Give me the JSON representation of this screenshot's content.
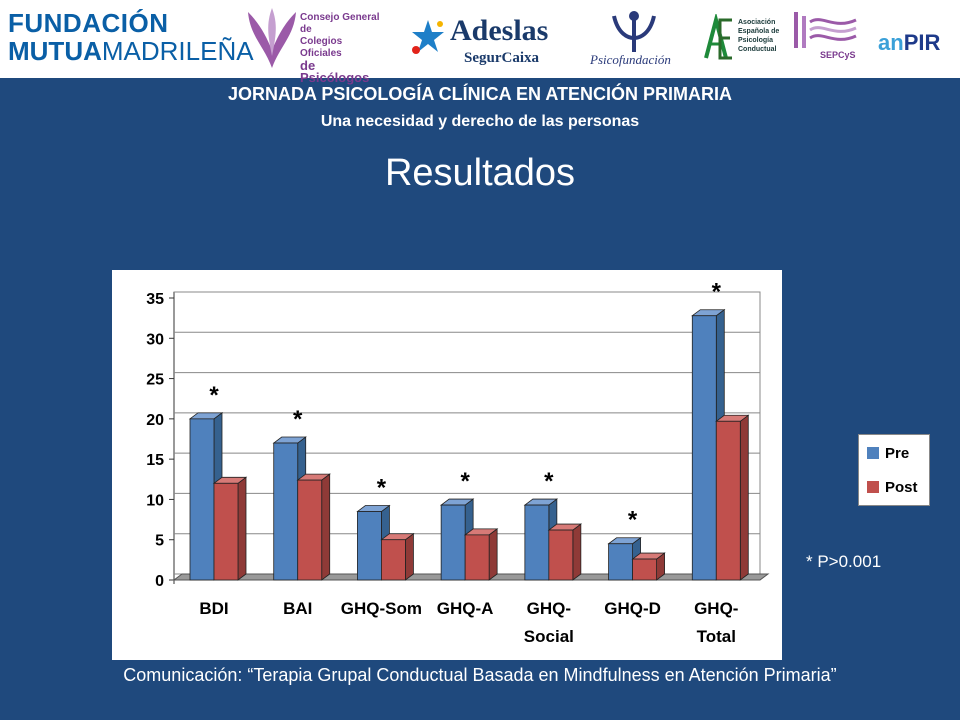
{
  "logos": {
    "fmm": {
      "line1": "FUNDACIÓN",
      "line2a": "MUTUA",
      "line2b": "MADRILEÑA"
    },
    "cgcop": {
      "l1": "Consejo General de",
      "l2": "Colegios Oficiales",
      "l3": "de Psicólogos"
    },
    "adeslas": {
      "name": "Adeslas",
      "sub": "SegurCaixa"
    },
    "psicofundacion": {
      "name": "Psicofundación"
    },
    "aepc": {
      "l1": "Asociación",
      "l2": "Española de",
      "l3": "Psicología",
      "l4": "Conductual"
    },
    "sepcys": {
      "name": "SEPCyS"
    },
    "anpir": {
      "a": "an",
      "b": "PIR"
    }
  },
  "header": {
    "title": "JORNADA PSICOLOGÍA CLÍNICA EN ATENCIÓN PRIMARIA",
    "subtitle": "Una necesidad y derecho de las personas",
    "section": "Resultados"
  },
  "chart_data": {
    "type": "bar",
    "categories": [
      "BDI",
      "BAI",
      "GHQ-Som",
      "GHQ-A",
      "GHQ-Social",
      "GHQ-D",
      "GHQ-Total"
    ],
    "category_lines": [
      [
        "BDI"
      ],
      [
        "BAI"
      ],
      [
        "GHQ-Som"
      ],
      [
        "GHQ-A"
      ],
      [
        "GHQ-",
        "Social"
      ],
      [
        "GHQ-D"
      ],
      [
        "GHQ-",
        "Total"
      ]
    ],
    "series": [
      {
        "name": "Pre",
        "color": "#4f81bd",
        "values": [
          20,
          17,
          8.5,
          9.3,
          9.3,
          4.5,
          32.8
        ]
      },
      {
        "name": "Post",
        "color": "#c0504d",
        "values": [
          12,
          12.4,
          5,
          5.6,
          6.2,
          2.6,
          19.7
        ]
      }
    ],
    "significance": [
      "*",
      "*",
      "*",
      "*",
      "*",
      "*",
      "*"
    ],
    "ylim": [
      0,
      35
    ],
    "yticks": [
      "0",
      "5",
      "10",
      "15",
      "20",
      "25",
      "30",
      "35"
    ],
    "legend": [
      "Pre",
      "Post"
    ]
  },
  "note": "* P>0.001",
  "footer": "Comunicación: “Terapia Grupal Conductual Basada en Mindfulness en Atención Primaria”"
}
